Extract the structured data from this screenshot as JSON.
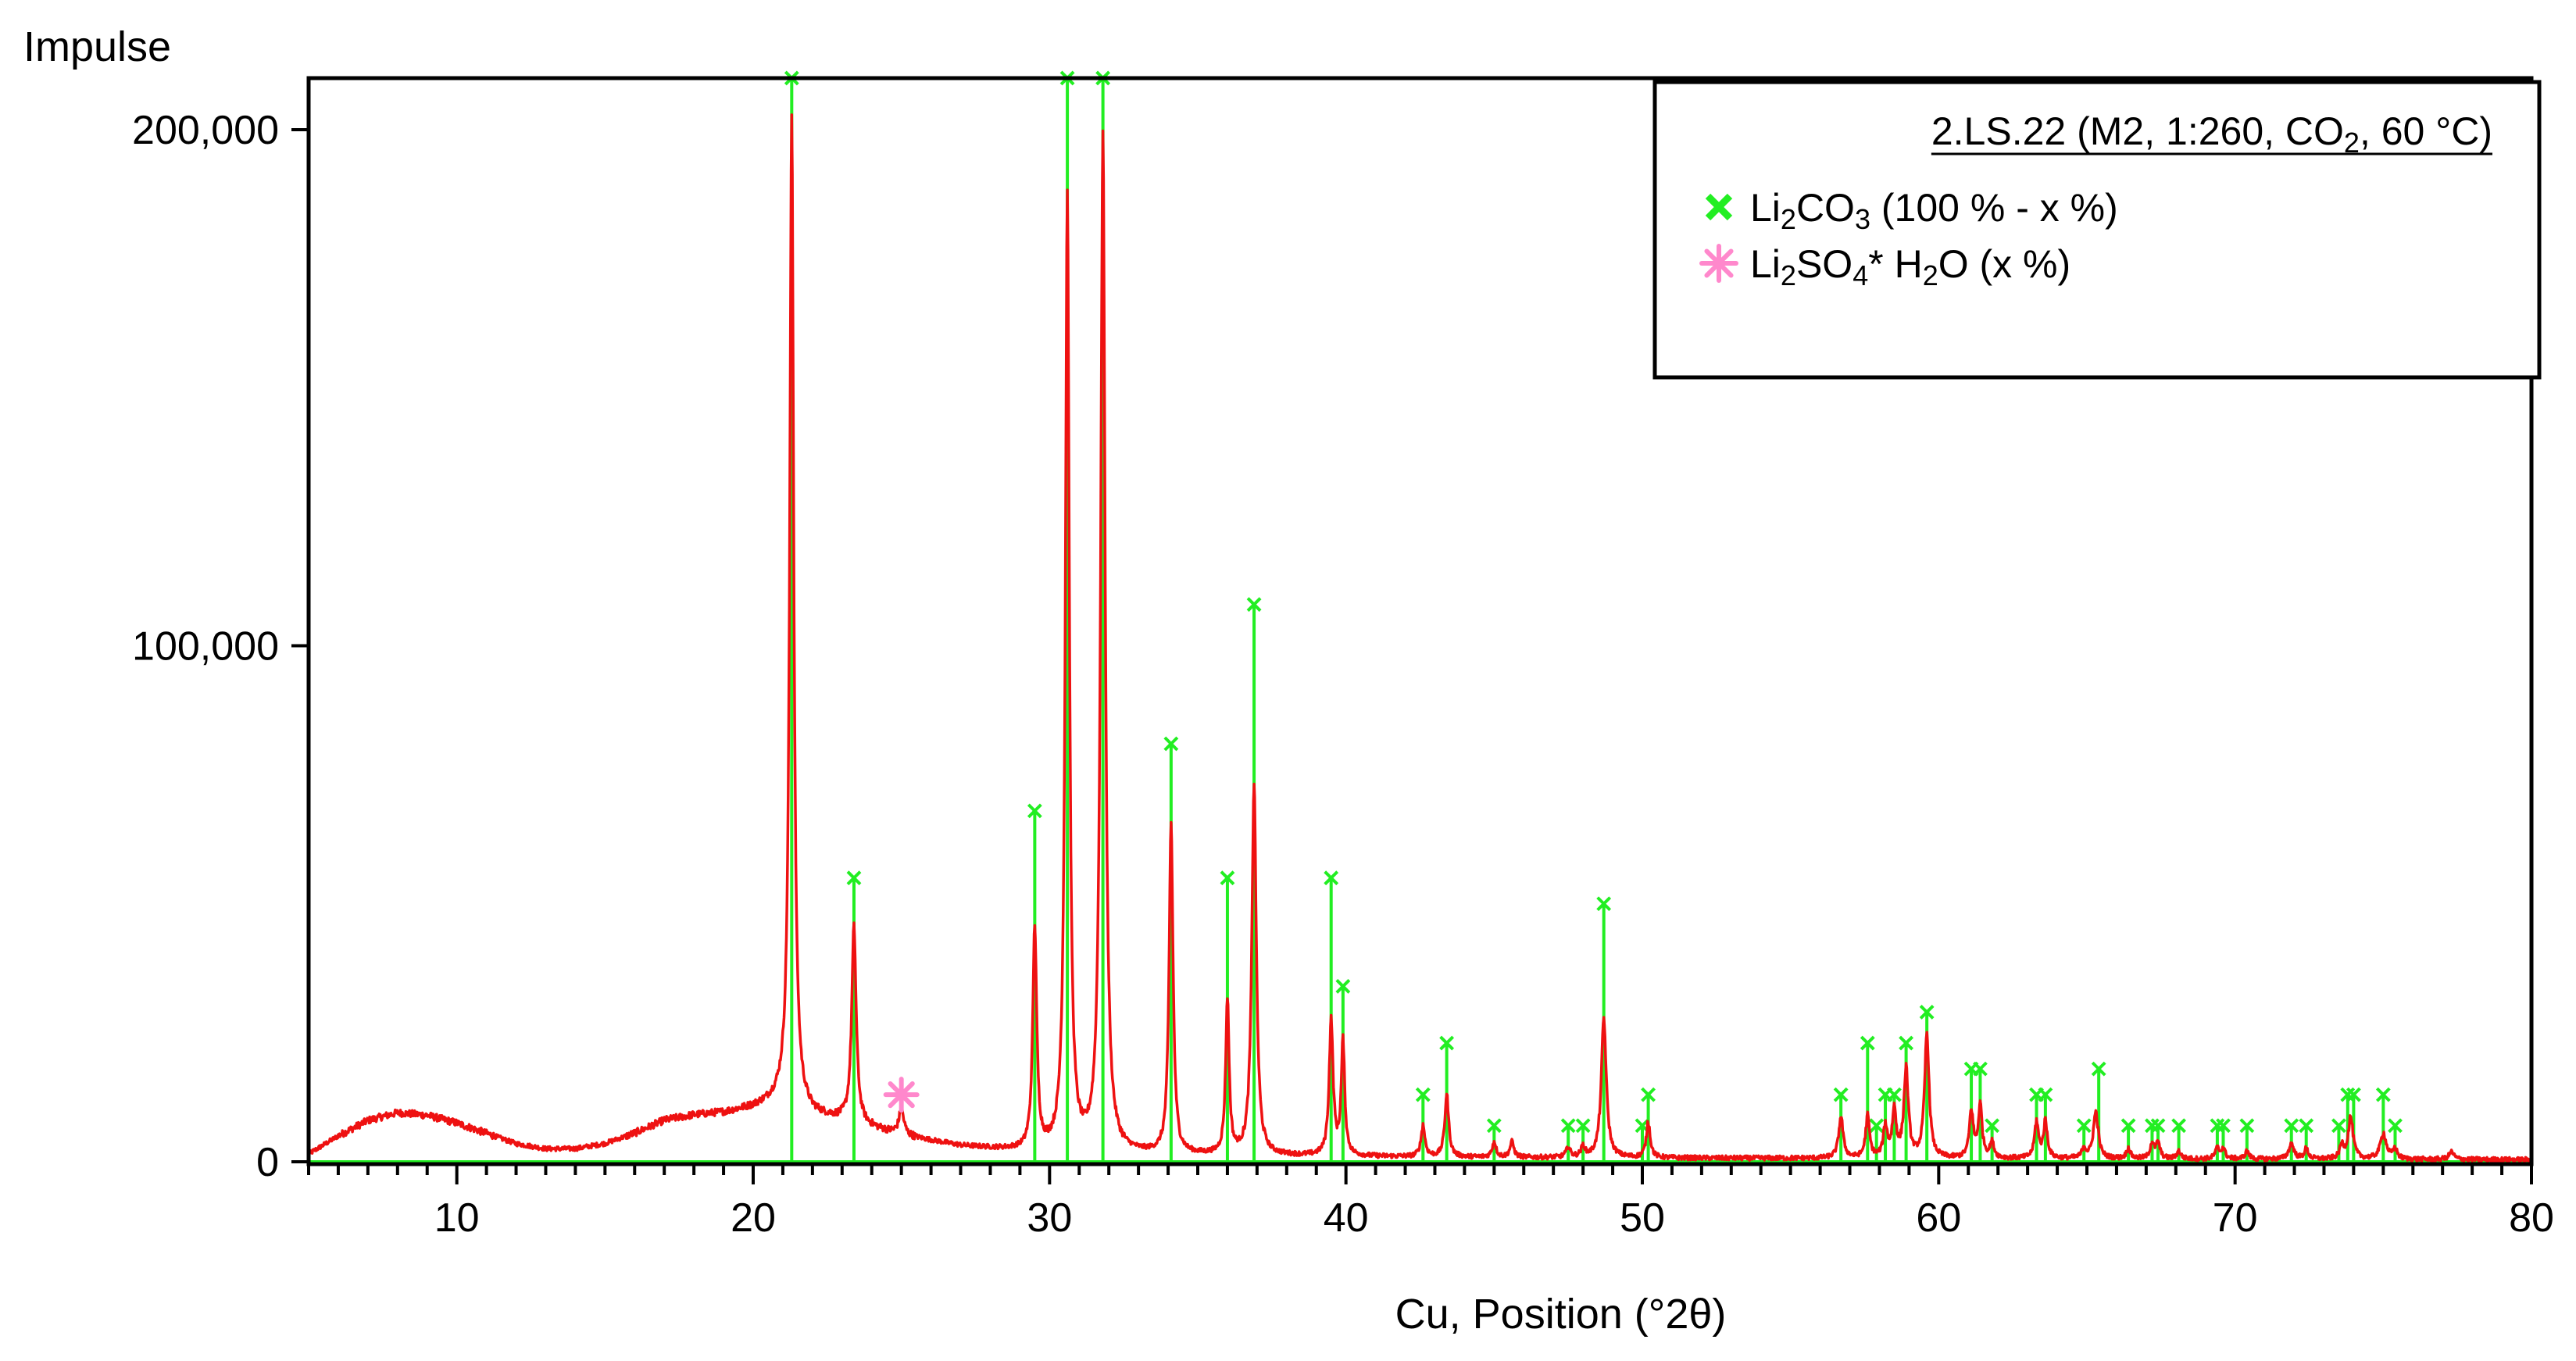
{
  "chart_data": {
    "type": "line",
    "ylabel": "Impulse",
    "xlabel": "Cu, Position (°2θ)",
    "xlim": [
      5,
      80
    ],
    "ylim": [
      -3000,
      210000
    ],
    "x_ticks": [
      10,
      20,
      30,
      40,
      50,
      60,
      70,
      80
    ],
    "x_tick_labels": [
      "10",
      "20",
      "30",
      "40",
      "50",
      "60",
      "70",
      "80"
    ],
    "y_ticks": [
      0,
      100000,
      200000
    ],
    "y_tick_labels": [
      "0",
      "100,000",
      "200,000"
    ],
    "grid": false,
    "legend": {
      "placement": "top-right",
      "title": "2.LS.22 (M2, 1:260, CO₂, 60 °C)",
      "entries": [
        {
          "label": "Li₂CO₃ (100 % - x %)",
          "marker": "x",
          "color": "#22ee22"
        },
        {
          "label": "Li₂SO₄* H₂O (x %)",
          "marker": "asterisk",
          "color": "#ff88cc"
        }
      ]
    },
    "colors": {
      "pattern": "#ee1111",
      "reference": "#22ee22",
      "impurity": "#ff88cc"
    },
    "pattern": {
      "background": [
        [
          5.0,
          1500
        ],
        [
          6.0,
          5000
        ],
        [
          7.0,
          8000
        ],
        [
          8.0,
          9500
        ],
        [
          9.0,
          9000
        ],
        [
          10.0,
          7500
        ],
        [
          11.0,
          5500
        ],
        [
          12.0,
          3500
        ],
        [
          13.0,
          2500
        ],
        [
          14.0,
          2500
        ],
        [
          15.0,
          3500
        ],
        [
          16.0,
          5500
        ],
        [
          17.0,
          8000
        ],
        [
          18.0,
          9000
        ],
        [
          19.0,
          9500
        ],
        [
          20.0,
          10500
        ],
        [
          21.0,
          12000
        ],
        [
          22.0,
          9000
        ],
        [
          23.0,
          8000
        ],
        [
          24.0,
          6500
        ],
        [
          25.0,
          5000
        ],
        [
          26.0,
          4000
        ],
        [
          27.0,
          3000
        ],
        [
          28.0,
          2500
        ],
        [
          29.0,
          2000
        ],
        [
          32.0,
          1500
        ],
        [
          35.0,
          1200
        ],
        [
          40.0,
          1000
        ],
        [
          45.0,
          800
        ],
        [
          50.0,
          700
        ],
        [
          60.0,
          600
        ],
        [
          70.0,
          500
        ],
        [
          80.0,
          400
        ]
      ],
      "peaks": [
        [
          21.3,
          192000,
          0.08
        ],
        [
          23.4,
          38000,
          0.09
        ],
        [
          25.0,
          5000,
          0.1
        ],
        [
          29.5,
          43000,
          0.08
        ],
        [
          30.6,
          185000,
          0.08
        ],
        [
          31.8,
          197000,
          0.09
        ],
        [
          34.1,
          64000,
          0.08
        ],
        [
          36.0,
          30000,
          0.07
        ],
        [
          36.9,
          72000,
          0.09
        ],
        [
          39.5,
          26000,
          0.08
        ],
        [
          39.9,
          22000,
          0.07
        ],
        [
          42.6,
          6000,
          0.08
        ],
        [
          43.4,
          12000,
          0.08
        ],
        [
          45.0,
          3000,
          0.08
        ],
        [
          45.6,
          3000,
          0.08
        ],
        [
          47.5,
          2000,
          0.08
        ],
        [
          48.0,
          2000,
          0.08
        ],
        [
          48.7,
          27000,
          0.1
        ],
        [
          50.2,
          7000,
          0.08
        ],
        [
          56.7,
          8000,
          0.09
        ],
        [
          57.6,
          8000,
          0.08
        ],
        [
          58.2,
          6000,
          0.08
        ],
        [
          58.5,
          9000,
          0.08
        ],
        [
          58.9,
          17000,
          0.09
        ],
        [
          59.6,
          24000,
          0.09
        ],
        [
          61.1,
          9000,
          0.08
        ],
        [
          61.4,
          10000,
          0.08
        ],
        [
          61.8,
          3000,
          0.08
        ],
        [
          63.3,
          7000,
          0.08
        ],
        [
          63.6,
          7000,
          0.08
        ],
        [
          64.9,
          2000,
          0.08
        ],
        [
          65.3,
          9000,
          0.1
        ],
        [
          66.4,
          2000,
          0.08
        ],
        [
          67.2,
          3000,
          0.08
        ],
        [
          67.4,
          3000,
          0.08
        ],
        [
          68.1,
          1500,
          0.08
        ],
        [
          69.4,
          2000,
          0.08
        ],
        [
          69.6,
          2000,
          0.08
        ],
        [
          70.4,
          1500,
          0.08
        ],
        [
          71.9,
          3000,
          0.1
        ],
        [
          72.4,
          2000,
          0.08
        ],
        [
          73.6,
          2500,
          0.08
        ],
        [
          73.9,
          8000,
          0.1
        ],
        [
          75.0,
          5000,
          0.12
        ],
        [
          75.4,
          2000,
          0.08
        ],
        [
          77.3,
          1500,
          0.1
        ]
      ]
    },
    "reference_Li2CO3": [
      [
        21.3,
        210000
      ],
      [
        23.4,
        55000
      ],
      [
        29.5,
        68000
      ],
      [
        30.6,
        210000
      ],
      [
        31.8,
        210000
      ],
      [
        34.1,
        81000
      ],
      [
        36.0,
        55000
      ],
      [
        36.9,
        108000
      ],
      [
        39.5,
        55000
      ],
      [
        39.9,
        34000
      ],
      [
        42.6,
        13000
      ],
      [
        43.4,
        23000
      ],
      [
        45.0,
        7000
      ],
      [
        47.5,
        7000
      ],
      [
        48.0,
        7000
      ],
      [
        48.7,
        50000
      ],
      [
        50.0,
        7000
      ],
      [
        50.2,
        13000
      ],
      [
        56.7,
        13000
      ],
      [
        57.6,
        23000
      ],
      [
        57.9,
        7000
      ],
      [
        58.2,
        13000
      ],
      [
        58.5,
        13000
      ],
      [
        58.9,
        23000
      ],
      [
        59.6,
        29000
      ],
      [
        61.1,
        18000
      ],
      [
        61.4,
        18000
      ],
      [
        61.8,
        7000
      ],
      [
        63.3,
        13000
      ],
      [
        63.6,
        13000
      ],
      [
        64.9,
        7000
      ],
      [
        65.4,
        18000
      ],
      [
        66.4,
        7000
      ],
      [
        67.2,
        7000
      ],
      [
        67.4,
        7000
      ],
      [
        68.1,
        7000
      ],
      [
        69.4,
        7000
      ],
      [
        69.6,
        7000
      ],
      [
        70.4,
        7000
      ],
      [
        71.9,
        7000
      ],
      [
        72.4,
        7000
      ],
      [
        73.5,
        7000
      ],
      [
        73.8,
        13000
      ],
      [
        74.0,
        13000
      ],
      [
        75.0,
        13000
      ],
      [
        75.4,
        7000
      ]
    ],
    "impurity_Li2SO4_H2O": [
      {
        "x": 25.0,
        "y": 13000
      }
    ]
  }
}
